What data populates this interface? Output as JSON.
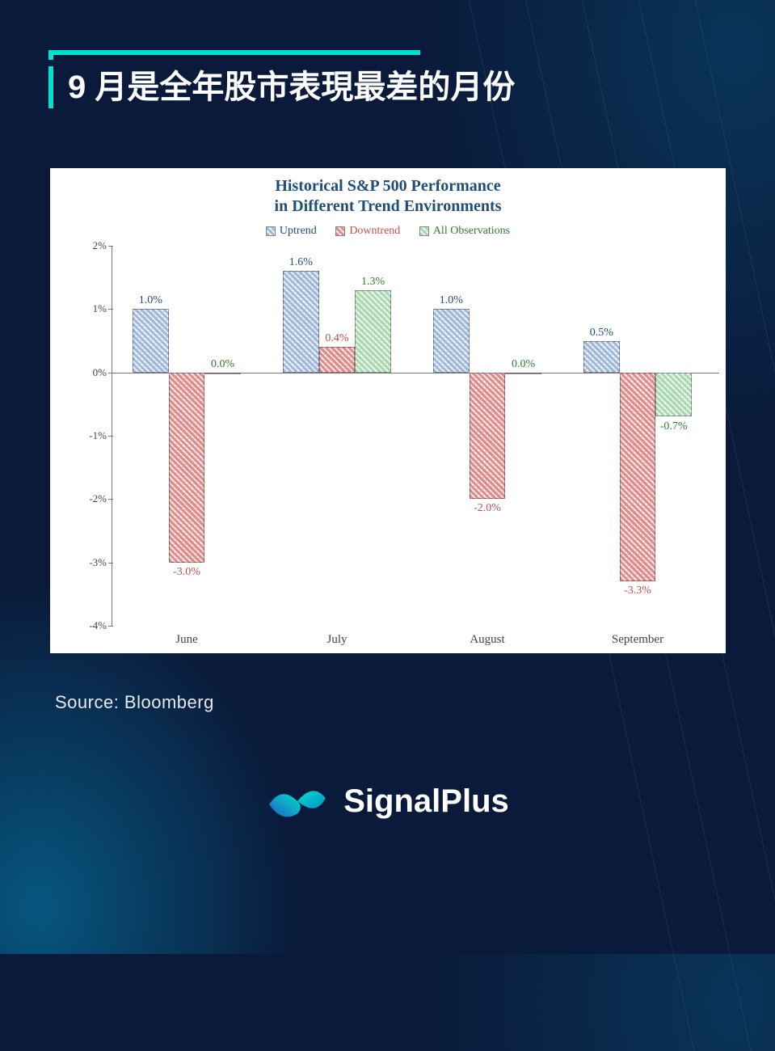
{
  "page": {
    "title": "9 月是全年股市表現最差的月份",
    "source": "Source: Bloomberg",
    "brand": "SignalPlus",
    "background_color": "#0a1a3a",
    "accent_color": "#00e0d0"
  },
  "chart": {
    "type": "bar",
    "title_line1": "Historical S&P 500 Performance",
    "title_line2": "in Different Trend Environments",
    "title_color": "#1f4e79",
    "title_fontsize": 20,
    "background_color": "#ffffff",
    "axis_color": "#7a7a7a",
    "label_font": "Georgia, serif",
    "label_fontsize": 14,
    "ylim": [
      -4,
      2
    ],
    "ytick_step": 1,
    "ytick_format": "percent",
    "categories": [
      "June",
      "July",
      "August",
      "September"
    ],
    "series": [
      {
        "name": "Uptrend",
        "color": "#9db8da",
        "pattern": "crosshatch",
        "label_color": "#1f4e79",
        "values": [
          1.0,
          1.6,
          1.0,
          0.5
        ]
      },
      {
        "name": "Downtrend",
        "color": "#e08a8a",
        "pattern": "crosshatch",
        "label_color": "#c0504d",
        "values": [
          -3.0,
          0.4,
          -2.0,
          -3.3
        ]
      },
      {
        "name": "All Observations",
        "color": "#a8d8b0",
        "pattern": "crosshatch",
        "label_color": "#2e7d32",
        "values": [
          0.0,
          1.3,
          0.0,
          -0.7
        ]
      }
    ],
    "bar_width_rel": 0.24,
    "group_gap_rel": 0.22
  }
}
